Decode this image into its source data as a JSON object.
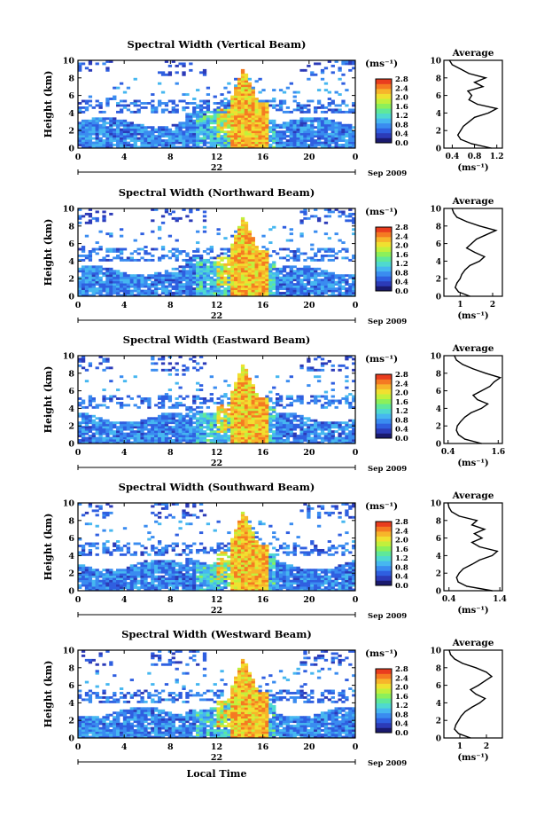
{
  "colors": {
    "colormap": [
      "#1a1a6e",
      "#2c3bb8",
      "#2f5fe0",
      "#3a8cf0",
      "#46b7f0",
      "#4fd9d0",
      "#5fe89a",
      "#8cf05a",
      "#c2f03c",
      "#f0e030",
      "#f7b52a",
      "#f57a22",
      "#ea3d1e"
    ],
    "axis": "#000000"
  },
  "chart_data": [
    {
      "type": "heatmap",
      "panel": "vertical",
      "title": "Spectral Width (Vertical Beam)",
      "xlabel": "",
      "ylabel": "Height (km)",
      "x_ticks": [
        "0",
        "4",
        "8",
        "12",
        "16",
        "20",
        "0"
      ],
      "xlim": [
        0,
        24
      ],
      "y_ticks": [
        "0",
        "2",
        "4",
        "6",
        "8",
        "10"
      ],
      "ylim": [
        0,
        10
      ],
      "date_label": "22",
      "date_suffix": "Sep 2009",
      "colorbar": {
        "label": "(ms⁻¹)",
        "ticks": [
          "0.0",
          "0.4",
          "0.8",
          "1.2",
          "1.6",
          "2.0",
          "2.4",
          "2.8"
        ],
        "range": [
          0,
          2.8
        ]
      },
      "average": {
        "title": "Average",
        "xlabel": "(ms⁻¹)",
        "x_ticks": [
          "0.4",
          "0.8",
          "1.2"
        ],
        "xlim": [
          0.25,
          1.3
        ],
        "heights": [
          0,
          0.5,
          1,
          1.5,
          2,
          2.5,
          3,
          3.5,
          4,
          4.5,
          5,
          5.5,
          6,
          6.5,
          7,
          7.5,
          8,
          8.5,
          9,
          9.5,
          10
        ],
        "values": [
          1.1,
          0.75,
          0.55,
          0.5,
          0.55,
          0.6,
          0.7,
          0.8,
          1.05,
          1.2,
          0.85,
          0.7,
          0.75,
          0.68,
          0.95,
          0.8,
          1.0,
          0.7,
          0.55,
          0.4,
          0.35
        ]
      }
    },
    {
      "type": "heatmap",
      "panel": "northward",
      "title": "Spectral Width (Northward Beam)",
      "xlabel": "",
      "ylabel": "Height (km)",
      "x_ticks": [
        "0",
        "4",
        "8",
        "12",
        "16",
        "20",
        "0"
      ],
      "xlim": [
        0,
        24
      ],
      "y_ticks": [
        "0",
        "2",
        "4",
        "6",
        "8",
        "10"
      ],
      "ylim": [
        0,
        10
      ],
      "date_label": "22",
      "date_suffix": "Sep 2009",
      "colorbar": {
        "label": "(ms⁻¹)",
        "ticks": [
          "0.0",
          "0.4",
          "0.8",
          "1.2",
          "1.6",
          "2.0",
          "2.4",
          "2.8"
        ],
        "range": [
          0,
          2.8
        ]
      },
      "average": {
        "title": "Average",
        "xlabel": "(ms⁻¹)",
        "x_ticks": [
          "1",
          "2"
        ],
        "xlim": [
          0.5,
          2.3
        ],
        "heights": [
          0,
          0.5,
          1,
          1.5,
          2,
          2.5,
          3,
          3.5,
          4,
          4.5,
          5,
          5.5,
          6,
          6.5,
          7,
          7.5,
          8,
          8.5,
          9,
          9.5,
          10
        ],
        "values": [
          1.3,
          0.95,
          0.85,
          0.9,
          1.0,
          1.05,
          1.15,
          1.3,
          1.6,
          1.75,
          1.45,
          1.2,
          1.35,
          1.5,
          1.8,
          2.1,
          1.6,
          1.2,
          0.9,
          0.8,
          0.75
        ]
      }
    },
    {
      "type": "heatmap",
      "panel": "eastward",
      "title": "Spectral Width (Eastward Beam)",
      "xlabel": "",
      "ylabel": "Height (km)",
      "x_ticks": [
        "0",
        "4",
        "8",
        "12",
        "16",
        "20",
        "0"
      ],
      "xlim": [
        0,
        24
      ],
      "y_ticks": [
        "0",
        "2",
        "4",
        "6",
        "8",
        "10"
      ],
      "ylim": [
        0,
        10
      ],
      "date_label": "22",
      "date_suffix": "Sep 2009",
      "colorbar": {
        "label": "(ms⁻¹)",
        "ticks": [
          "0.0",
          "0.4",
          "0.8",
          "1.2",
          "1.6",
          "2.0",
          "2.4",
          "2.8"
        ],
        "range": [
          0,
          2.8
        ]
      },
      "average": {
        "title": "Average",
        "xlabel": "(ms⁻¹)",
        "x_ticks": [
          "0.4",
          "1.6"
        ],
        "xlim": [
          0.3,
          1.7
        ],
        "heights": [
          0,
          0.5,
          1,
          1.5,
          2,
          2.5,
          3,
          3.5,
          4,
          4.5,
          5,
          5.5,
          6,
          6.5,
          7,
          7.5,
          8,
          8.5,
          9,
          9.5,
          10
        ],
        "values": [
          1.2,
          0.8,
          0.65,
          0.6,
          0.62,
          0.7,
          0.8,
          0.95,
          1.2,
          1.35,
          1.1,
          1.0,
          1.2,
          1.4,
          1.5,
          1.65,
          1.3,
          1.0,
          0.75,
          0.6,
          0.55
        ]
      }
    },
    {
      "type": "heatmap",
      "panel": "southward",
      "title": "Spectral Width (Southward Beam)",
      "xlabel": "",
      "ylabel": "Height (km)",
      "x_ticks": [
        "0",
        "4",
        "8",
        "12",
        "16",
        "20",
        "0"
      ],
      "xlim": [
        0,
        24
      ],
      "y_ticks": [
        "0",
        "2",
        "4",
        "6",
        "8",
        "10"
      ],
      "ylim": [
        0,
        10
      ],
      "date_label": "22",
      "date_suffix": "Sep 2009",
      "colorbar": {
        "label": "(ms⁻¹)",
        "ticks": [
          "0.0",
          "0.4",
          "0.8",
          "1.2",
          "1.6",
          "2.0",
          "2.4",
          "2.8"
        ],
        "range": [
          0,
          2.8
        ]
      },
      "average": {
        "title": "Average",
        "xlabel": "(ms⁻¹)",
        "x_ticks": [
          "0.4",
          "1.4"
        ],
        "xlim": [
          0.3,
          1.45
        ],
        "heights": [
          0,
          0.5,
          1,
          1.5,
          2,
          2.5,
          3,
          3.5,
          4,
          4.5,
          5,
          5.5,
          6,
          6.5,
          7,
          7.5,
          8,
          8.5,
          9,
          9.5,
          10
        ],
        "values": [
          1.25,
          0.75,
          0.58,
          0.55,
          0.6,
          0.68,
          0.85,
          1.0,
          1.25,
          1.35,
          1.0,
          0.85,
          1.05,
          0.9,
          1.1,
          0.85,
          0.95,
          0.6,
          0.45,
          0.4,
          0.38
        ]
      }
    },
    {
      "type": "heatmap",
      "panel": "westward",
      "title": "Spectral Width (Westward Beam)",
      "xlabel": "Local Time",
      "ylabel": "Height (km)",
      "x_ticks": [
        "0",
        "4",
        "8",
        "12",
        "16",
        "20",
        "0"
      ],
      "xlim": [
        0,
        24
      ],
      "y_ticks": [
        "0",
        "2",
        "4",
        "6",
        "8",
        "10"
      ],
      "ylim": [
        0,
        10
      ],
      "date_label": "22",
      "date_suffix": "Sep 2009",
      "colorbar": {
        "label": "(ms⁻¹)",
        "ticks": [
          "0.0",
          "0.4",
          "0.8",
          "1.2",
          "1.6",
          "2.0",
          "2.4",
          "2.8"
        ],
        "range": [
          0,
          2.8
        ]
      },
      "average": {
        "title": "Average",
        "xlabel": "(ms⁻¹)",
        "x_ticks": [
          "1",
          "2"
        ],
        "xlim": [
          0.4,
          2.6
        ],
        "heights": [
          0,
          0.5,
          1,
          1.5,
          2,
          2.5,
          3,
          3.5,
          4,
          4.5,
          5,
          5.5,
          6,
          6.5,
          7,
          7.5,
          8,
          8.5,
          9,
          9.5,
          10
        ],
        "values": [
          1.4,
          0.95,
          0.8,
          0.85,
          0.95,
          1.05,
          1.2,
          1.45,
          1.75,
          1.95,
          1.6,
          1.4,
          1.7,
          1.95,
          2.2,
          2.0,
          1.6,
          1.1,
          0.8,
          0.65,
          0.6
        ]
      }
    }
  ]
}
